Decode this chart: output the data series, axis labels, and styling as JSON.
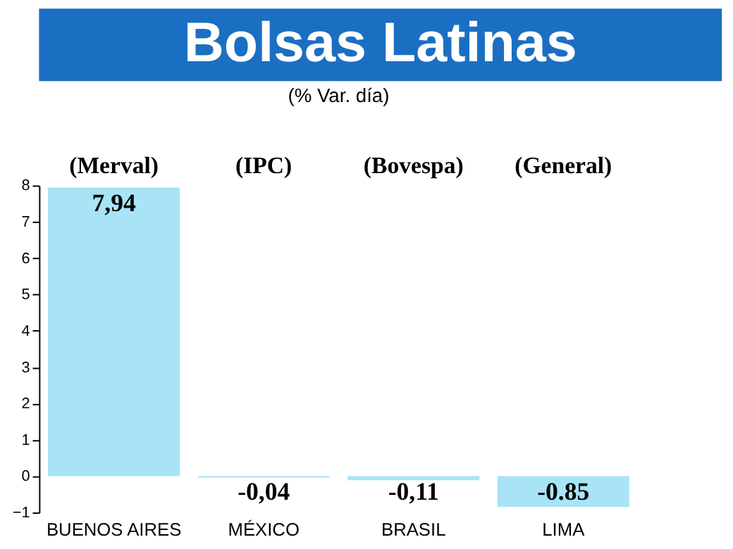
{
  "chart_data": {
    "type": "bar",
    "title": "Bolsas Latinas",
    "subtitle": "(% Var. día)",
    "categories": [
      "BUENOS AIRES",
      "MÉXICO",
      "BRASIL",
      "LIMA"
    ],
    "values": [
      7.94,
      -0.04,
      -0.11,
      -0.85
    ],
    "value_labels": [
      "7,94",
      "-0,04",
      "-0,11",
      "-0.85"
    ],
    "color": "#a8e3f6",
    "ylim": [
      -1,
      8
    ],
    "yticks": [
      -1,
      0,
      1,
      2,
      3,
      4,
      5,
      6,
      7,
      8
    ],
    "annotations": [
      "(Merval)",
      "(IPC)",
      "(Bovespa)",
      "(General)"
    ],
    "grid": false
  }
}
